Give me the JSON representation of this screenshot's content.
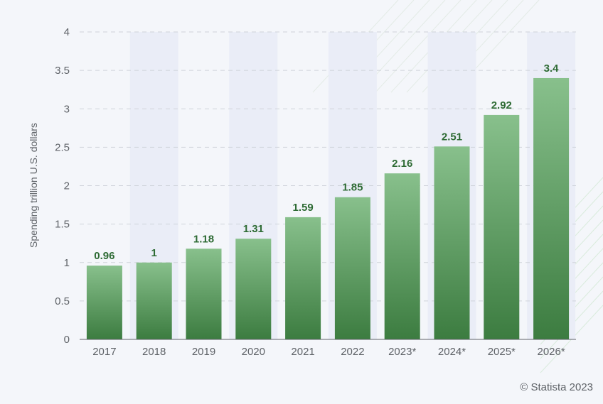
{
  "credit": "© Statista 2023",
  "colors": {
    "bar_top": "#88c08c",
    "bar_bottom": "#3c7c40",
    "value_label": "#2e6b34",
    "band": "#eaedf7",
    "grid": "#cfd3da",
    "text": "#5f6368"
  },
  "chart_data": {
    "type": "bar",
    "title": "",
    "xlabel": "",
    "ylabel": "Spending trillion U.S. dollars",
    "categories": [
      "2017",
      "2018",
      "2019",
      "2020",
      "2021",
      "2022",
      "2023*",
      "2024*",
      "2025*",
      "2026*"
    ],
    "values": [
      0.96,
      1,
      1.18,
      1.31,
      1.59,
      1.85,
      2.16,
      2.51,
      2.92,
      3.4
    ],
    "value_labels": [
      "0.96",
      "1",
      "1.18",
      "1.31",
      "1.59",
      "1.85",
      "2.16",
      "2.51",
      "2.92",
      "3.4"
    ],
    "ylim": [
      0,
      4
    ],
    "yticks": [
      0,
      0.5,
      1,
      1.5,
      2,
      2.5,
      3,
      3.5,
      4
    ],
    "ytick_labels": [
      "0",
      "0.5",
      "1",
      "1.5",
      "2",
      "2.5",
      "3",
      "3.5",
      "4"
    ],
    "grid": true,
    "legend": "none"
  }
}
